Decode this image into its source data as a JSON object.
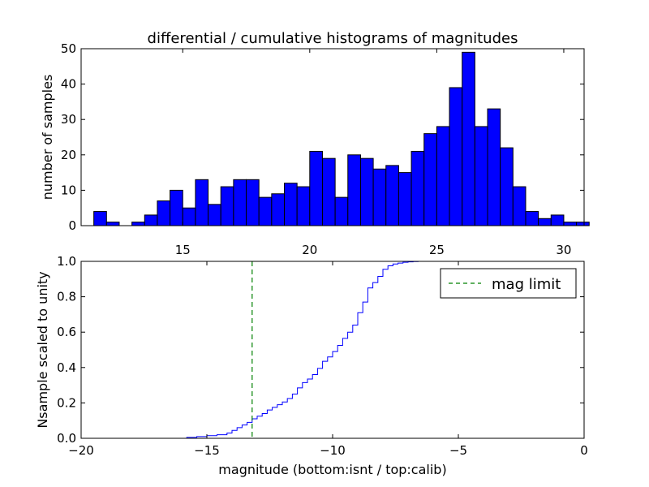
{
  "chart_data": [
    {
      "type": "bar",
      "title": "differential / cumulative histograms of magnitudes",
      "xlabel": "",
      "ylabel": "number of samples",
      "xlim": [
        11.0,
        30.8
      ],
      "ylim": [
        0,
        50
      ],
      "xticks": [
        "15",
        "20",
        "25",
        "30"
      ],
      "yticks": [
        "0",
        "10",
        "20",
        "30",
        "40",
        "50"
      ],
      "bin_start": 11.5,
      "bin_width": 0.5,
      "bar_color": "#0000ff",
      "values": [
        4,
        1,
        0,
        1,
        3,
        7,
        10,
        5,
        13,
        6,
        11,
        13,
        13,
        8,
        9,
        12,
        11,
        21,
        19,
        8,
        20,
        19,
        16,
        17,
        15,
        21,
        26,
        28,
        39,
        49,
        28,
        33,
        22,
        11,
        4,
        2,
        3,
        1,
        1
      ]
    },
    {
      "type": "line",
      "step": true,
      "title": "",
      "xlabel": "magnitude (bottom:isnt / top:calib)",
      "ylabel": "Nsample scaled to unity",
      "xlim": [
        -20,
        0
      ],
      "ylim": [
        0.0,
        1.0
      ],
      "xticks": [
        "−20",
        "−15",
        "−10",
        "−5",
        "0"
      ],
      "yticks": [
        "0.0",
        "0.2",
        "0.4",
        "0.6",
        "0.8",
        "1.0"
      ],
      "line_color": "#0000ff",
      "x": [
        -20,
        -15.8,
        -15.4,
        -15.0,
        -14.6,
        -14.2,
        -14.0,
        -13.8,
        -13.6,
        -13.4,
        -13.2,
        -13.0,
        -12.8,
        -12.6,
        -12.4,
        -12.2,
        -12.0,
        -11.8,
        -11.6,
        -11.4,
        -11.2,
        -11.0,
        -10.8,
        -10.6,
        -10.4,
        -10.2,
        -10.0,
        -9.8,
        -9.6,
        -9.4,
        -9.2,
        -9.0,
        -8.8,
        -8.6,
        -8.4,
        -8.2,
        -8.0,
        -7.8,
        -7.6,
        -7.4,
        -7.2,
        -7.0,
        -6.8,
        -6.6,
        0
      ],
      "y": [
        0.0,
        0.005,
        0.01,
        0.015,
        0.02,
        0.03,
        0.045,
        0.06,
        0.075,
        0.09,
        0.11,
        0.125,
        0.14,
        0.16,
        0.175,
        0.19,
        0.205,
        0.225,
        0.25,
        0.285,
        0.315,
        0.335,
        0.36,
        0.395,
        0.435,
        0.46,
        0.49,
        0.525,
        0.565,
        0.6,
        0.64,
        0.71,
        0.77,
        0.85,
        0.88,
        0.915,
        0.955,
        0.975,
        0.985,
        0.99,
        0.995,
        0.997,
        0.999,
        1.0,
        1.0
      ],
      "mag_limit": -13.2,
      "mag_limit_color": "#008000",
      "legend_label": "mag limit",
      "legend_position": "top-right"
    }
  ]
}
